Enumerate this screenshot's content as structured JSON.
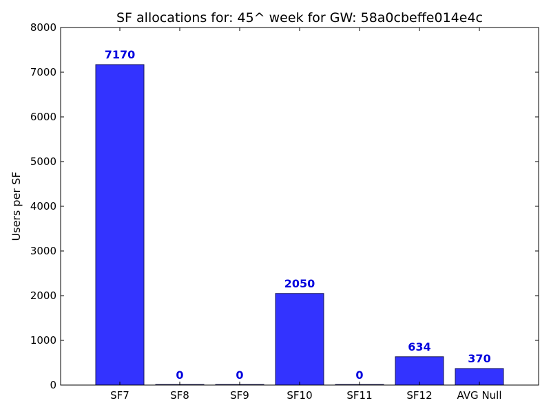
{
  "chart_data": {
    "type": "bar",
    "title": "SF allocations for: 45^ week for GW: 58a0cbeffe014e4c",
    "xlabel": "",
    "ylabel": "Users per SF",
    "categories": [
      "SF7",
      "SF8",
      "SF9",
      "SF10",
      "SF11",
      "SF12",
      "AVG Null"
    ],
    "values": [
      7170,
      0,
      0,
      2050,
      0,
      634,
      370
    ],
    "data_labels": [
      "7170",
      "0",
      "0",
      "2050",
      "0",
      "634",
      "370"
    ],
    "ylim": [
      0,
      8000
    ],
    "yticks": [
      0,
      1000,
      2000,
      3000,
      4000,
      5000,
      6000,
      7000,
      8000
    ],
    "ytick_labels": [
      "0",
      "1000",
      "2000",
      "3000",
      "4000",
      "5000",
      "6000",
      "7000",
      "8000"
    ],
    "grid": false,
    "legend": "none",
    "bar_color": "#3333ff",
    "label_color": "#0000dd"
  }
}
